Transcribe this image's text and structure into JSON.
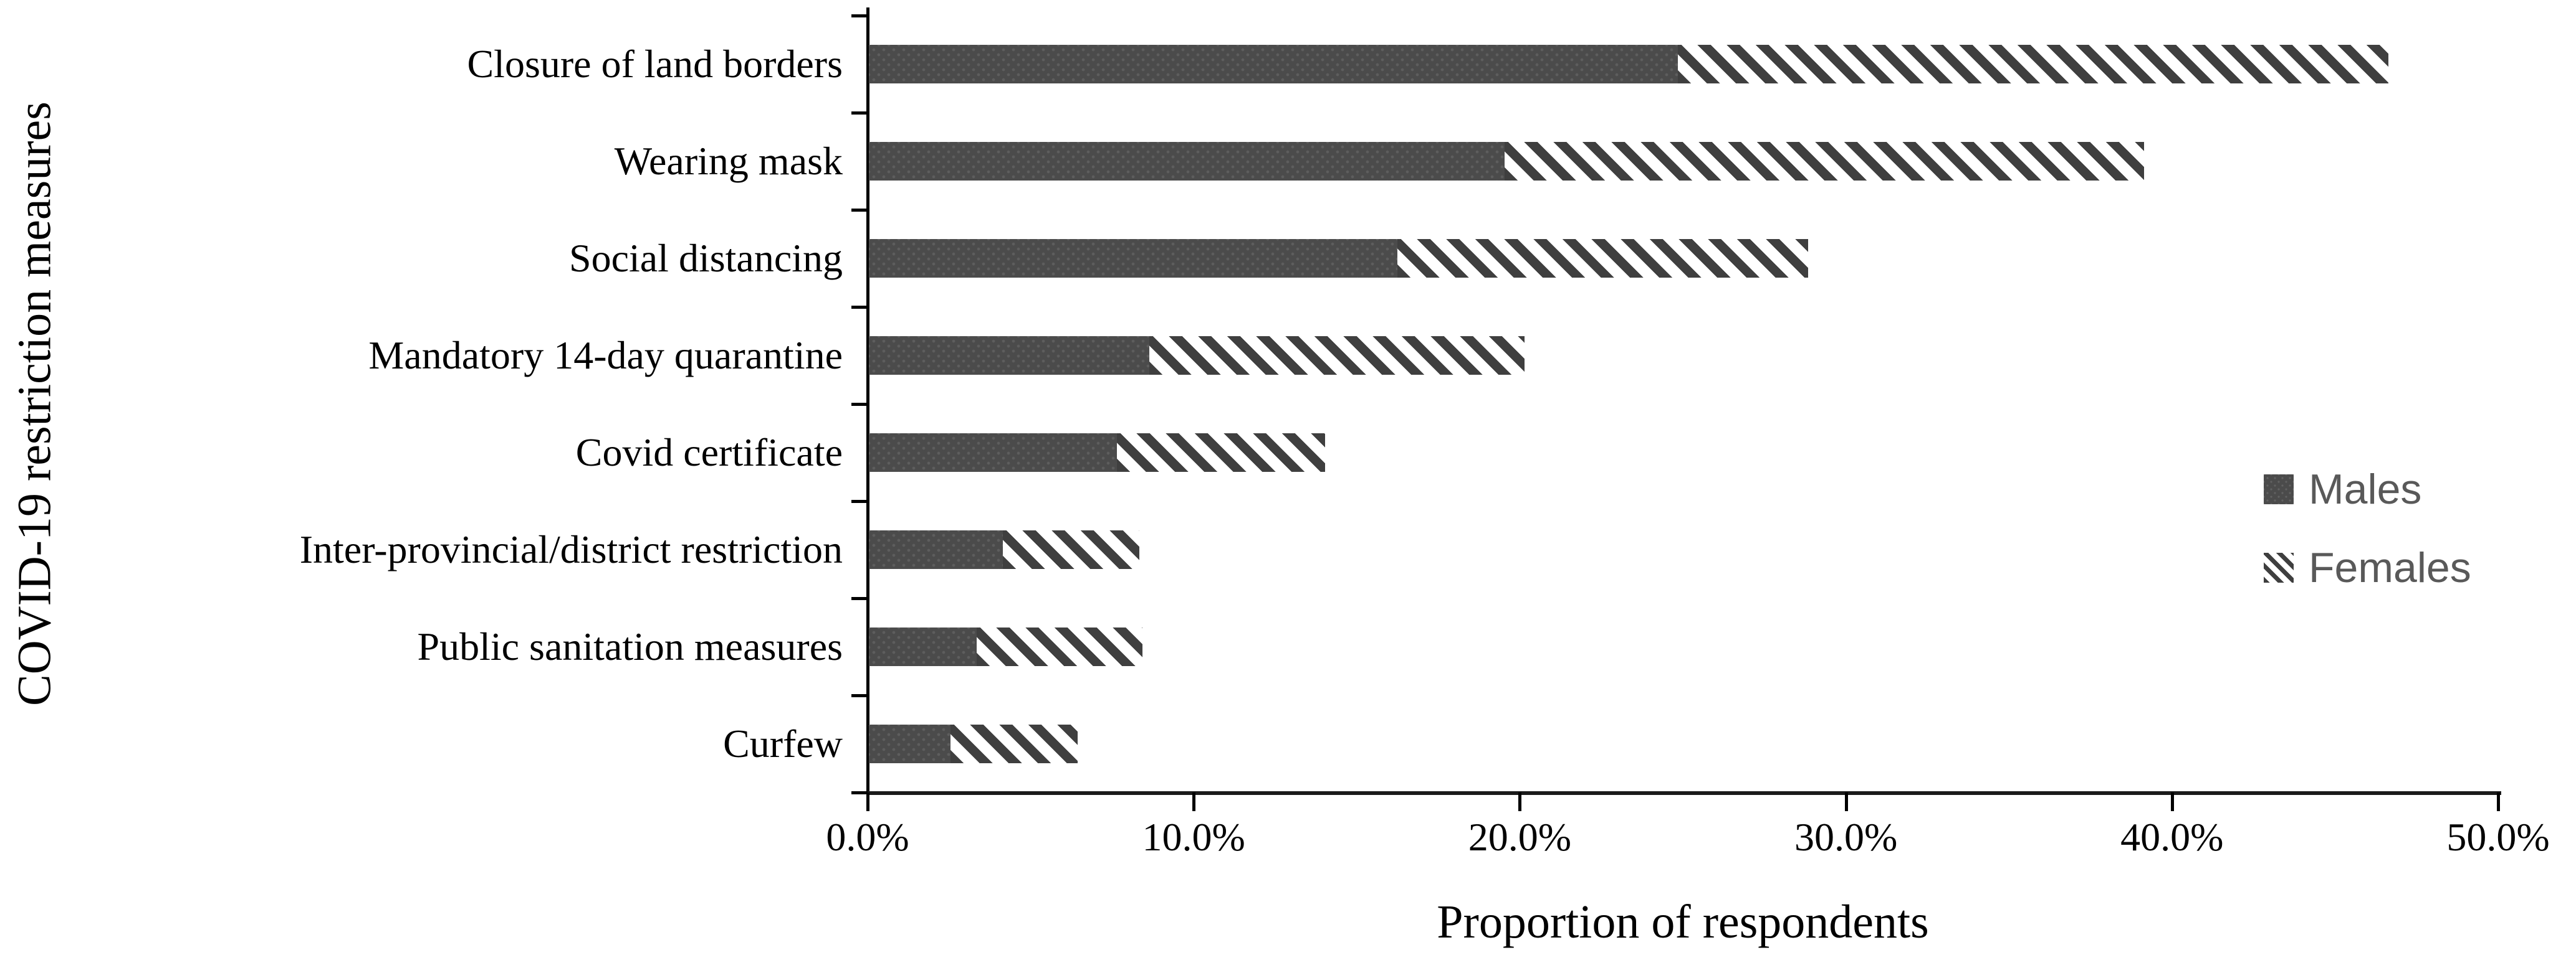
{
  "chart_data": {
    "type": "bar",
    "orientation": "horizontal",
    "stacked": true,
    "title": "",
    "xlabel": "Proportion of respondents",
    "ylabel": "COVID-19 restriction measures",
    "categories": [
      "Closure of land borders",
      "Wearing mask",
      "Social distancing",
      "Mandatory 14-day quarantine",
      "Covid certificate",
      "Inter-provincial/district restriction",
      "Public sanitation measures",
      "Curfew"
    ],
    "series": [
      {
        "name": "Males",
        "values": [
          24.8,
          19.5,
          16.2,
          8.6,
          7.6,
          4.1,
          3.3,
          2.5
        ]
      },
      {
        "name": "Females",
        "values": [
          21.8,
          19.6,
          12.6,
          11.5,
          6.4,
          4.2,
          5.1,
          3.9
        ]
      }
    ],
    "totals": [
      46.6,
      39.1,
      28.8,
      20.1,
      14.0,
      8.3,
      8.4,
      6.4
    ],
    "xlim": [
      0,
      50
    ],
    "xticks": [
      "0.0%",
      "10.0%",
      "20.0%",
      "30.0%",
      "40.0%",
      "50.0%"
    ],
    "xtick_values": [
      0,
      10,
      20,
      30,
      40,
      50
    ],
    "grid": false,
    "legend": {
      "position": "right-middle",
      "entries": [
        "Males",
        "Females"
      ]
    },
    "colors": {
      "males_fill": "#4b4b4b",
      "females_hatch": "#3f3f3f",
      "hatch_background": "#ffffff",
      "axis": "#000000",
      "legend_text": "#595959"
    }
  }
}
